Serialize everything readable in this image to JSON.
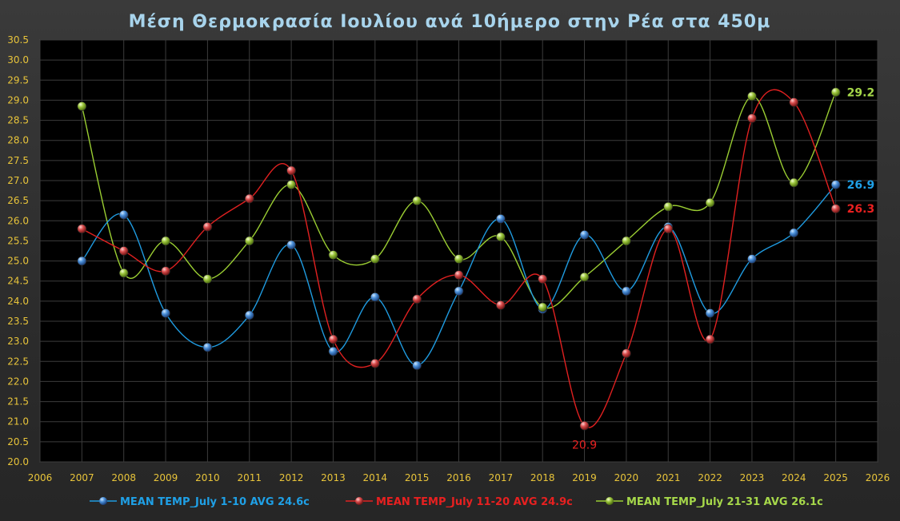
{
  "chart_data": {
    "type": "line",
    "title": "Μέση Θερμοκρασία Ιουλίου ανά 10ήμερο στην Ρέα στα 450μ",
    "x_ticks": [
      "2006",
      "2007",
      "2008",
      "2009",
      "2010",
      "2011",
      "2012",
      "2013",
      "2014",
      "2015",
      "2016",
      "2017",
      "2018",
      "2019",
      "2020",
      "2021",
      "2022",
      "2023",
      "2024",
      "2025",
      "2026"
    ],
    "y_ticks": [
      "20.0",
      "20.5",
      "21.0",
      "21.5",
      "22.0",
      "22.5",
      "23.0",
      "23.5",
      "24.0",
      "24.5",
      "25.0",
      "25.5",
      "26.0",
      "26.5",
      "27.0",
      "27.5",
      "28.0",
      "28.5",
      "29.0",
      "29.5",
      "30.0",
      "30.5"
    ],
    "xlim": [
      2006,
      2026
    ],
    "ylim": [
      20.0,
      30.5
    ],
    "grid": true,
    "legend_position": "bottom",
    "x": [
      2007,
      2008,
      2009,
      2010,
      2011,
      2012,
      2013,
      2014,
      2015,
      2016,
      2017,
      2018,
      2019,
      2020,
      2021,
      2022,
      2023,
      2024,
      2025
    ],
    "series": [
      {
        "name": "MEAN TEMP_July 1-10 AVG 24.6c",
        "color": "#1f9be0",
        "values": [
          25.0,
          26.15,
          23.7,
          22.85,
          23.65,
          25.4,
          22.75,
          24.1,
          22.4,
          24.25,
          26.05,
          23.8,
          25.65,
          24.25,
          25.85,
          23.7,
          25.05,
          25.7,
          26.9
        ],
        "end_label": "26.9"
      },
      {
        "name": "MEAN TEMP_July 11-20 AVG 24.9c",
        "color": "#e02020",
        "values": [
          25.8,
          25.25,
          24.75,
          25.85,
          26.55,
          27.25,
          23.05,
          22.45,
          24.05,
          24.65,
          23.9,
          24.55,
          20.9,
          22.7,
          25.8,
          23.05,
          28.55,
          28.95,
          26.3
        ],
        "end_label": "26.3",
        "min_label": "20.9"
      },
      {
        "name": "MEAN TEMP_July 21-31 AVG 26.1c",
        "color": "#9acd32",
        "values": [
          28.85,
          24.7,
          25.5,
          24.55,
          25.5,
          26.9,
          25.15,
          25.05,
          26.5,
          25.05,
          25.6,
          23.85,
          24.6,
          25.5,
          26.35,
          26.45,
          29.1,
          26.95,
          29.2
        ],
        "end_label": "29.2"
      }
    ]
  }
}
